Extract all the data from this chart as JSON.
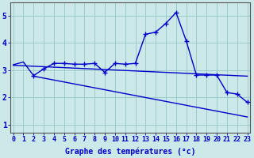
{
  "xlabel": "Graphe des températures (°c)",
  "background_color": "#cce8e8",
  "grid_color": "#99cccc",
  "line_color": "#0000cc",
  "xtick_labels": [
    "0",
    "1",
    "2",
    "3",
    "4",
    "5",
    "6",
    "7",
    "8",
    "9",
    "10",
    "11",
    "12",
    "13",
    "14",
    "15",
    "16",
    "17",
    "18",
    "19",
    "20",
    "21",
    "22",
    "23"
  ],
  "ylim": [
    0.7,
    5.5
  ],
  "xlim": [
    -0.3,
    23.3
  ],
  "yticks": [
    1,
    2,
    3,
    4,
    5
  ],
  "line1_x": [
    0,
    1,
    2,
    3,
    4,
    5,
    6,
    7,
    8,
    9,
    10,
    11,
    12,
    13,
    14,
    15,
    16,
    17,
    18,
    19,
    20,
    21,
    22,
    23
  ],
  "line1_y": [
    3.2,
    3.3,
    2.8,
    3.05,
    3.25,
    3.25,
    3.22,
    3.22,
    3.25,
    2.92,
    3.25,
    3.22,
    3.25,
    4.32,
    4.4,
    4.72,
    5.12,
    4.08,
    2.82,
    2.82,
    2.82,
    2.18,
    2.12,
    1.82
  ],
  "line1_marker_x": [
    2,
    3,
    4,
    5,
    6,
    7,
    8,
    9,
    10,
    11,
    12,
    13,
    14,
    15,
    16,
    17,
    18,
    19,
    20,
    21,
    22,
    23
  ],
  "line2_x": [
    0,
    23
  ],
  "line2_y": [
    3.18,
    2.78
  ],
  "line3_x": [
    2,
    23
  ],
  "line3_y": [
    2.78,
    1.28
  ],
  "marker": "+",
  "markersize": 4,
  "linewidth": 1.0,
  "tick_fontsize": 6,
  "xlabel_fontsize": 7
}
